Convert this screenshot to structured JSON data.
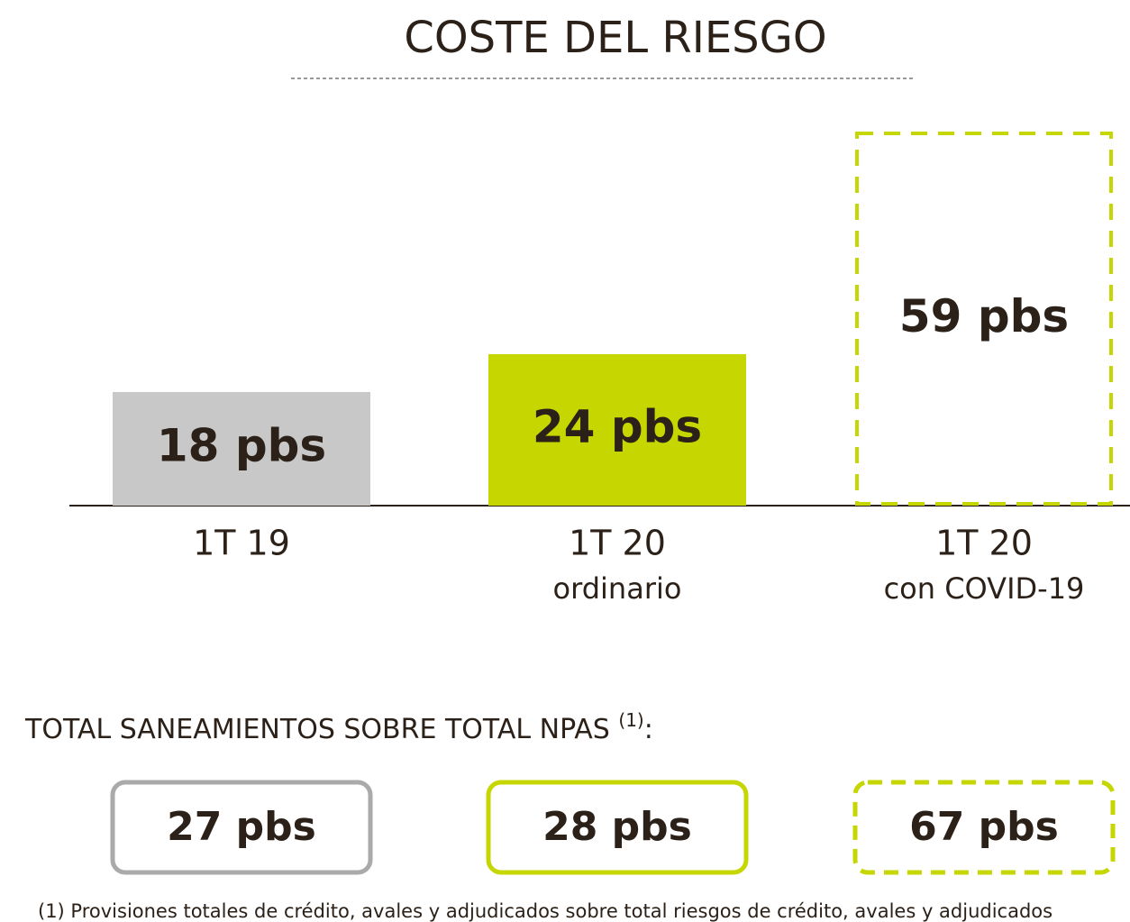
{
  "chart_data": {
    "type": "bar",
    "title": "COSTE DEL RIESGO",
    "categories": [
      [
        "1T 19"
      ],
      [
        "1T 20",
        "ordinario"
      ],
      [
        "1T 20",
        "con COVID-19"
      ]
    ],
    "values": [
      18,
      24,
      59
    ],
    "value_labels": [
      "18 pbs",
      "24 pbs",
      "59 pbs"
    ],
    "colors": [
      "#c8c8c8",
      "#c5d600",
      "#c5d600"
    ],
    "dashed": [
      false,
      false,
      true
    ]
  },
  "npas": {
    "title": "TOTAL SANEAMIENTOS SOBRE TOTAL NPAS",
    "note_ref": "(1)",
    "suffix": ":",
    "values": [
      27,
      28,
      67
    ],
    "value_labels": [
      "27 pbs",
      "28 pbs",
      "67 pbs"
    ],
    "colors": [
      "#aaaaaa",
      "#c5d600",
      "#c5d600"
    ],
    "dashed": [
      false,
      false,
      true
    ]
  },
  "footnote": "(1)  Provisiones totales de crédito, avales y adjudicados sobre total riesgos de crédito, avales y adjudicados"
}
